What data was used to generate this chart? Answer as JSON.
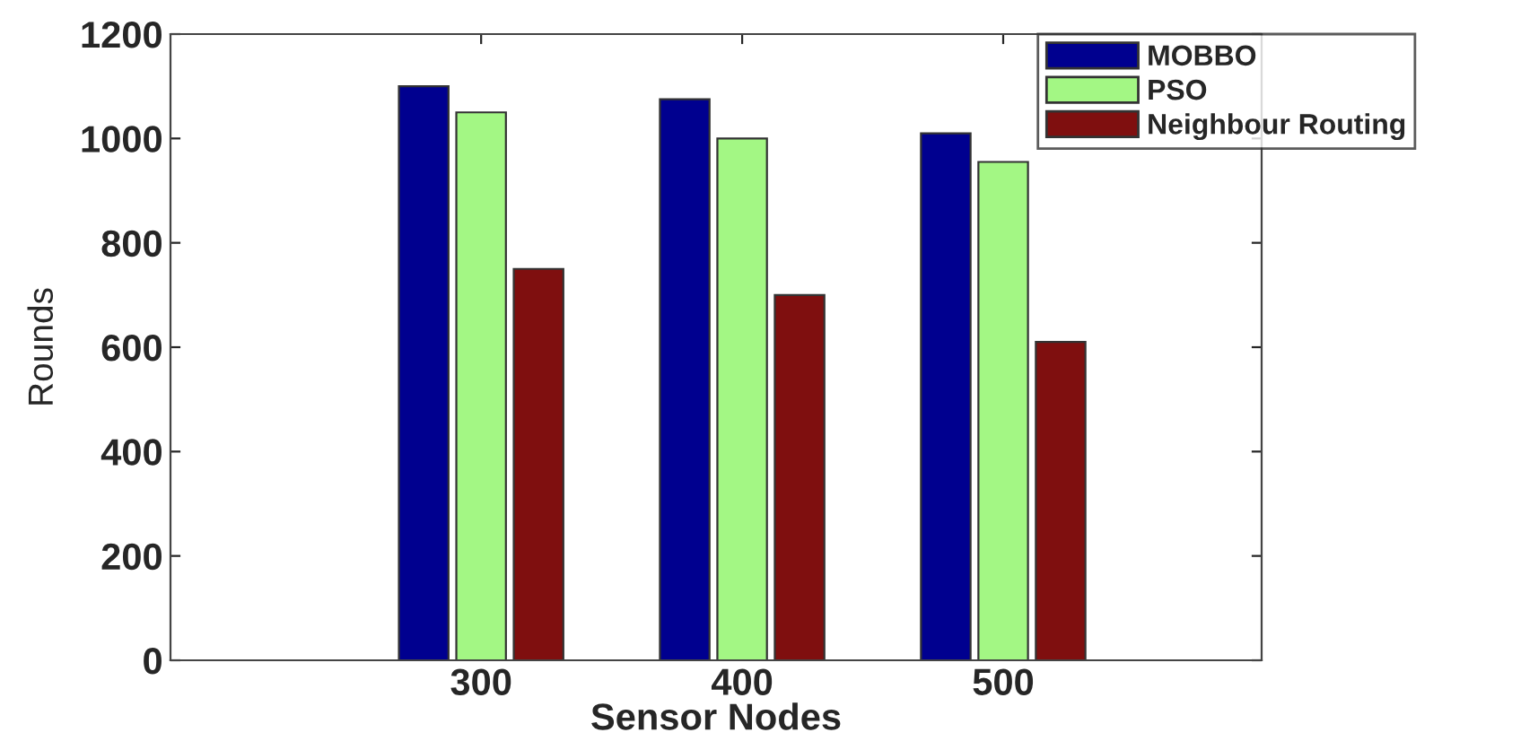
{
  "chart_data": {
    "type": "bar",
    "xlabel": "Sensor Nodes",
    "ylabel": "Rounds",
    "categories": [
      "300",
      "400",
      "500"
    ],
    "series": [
      {
        "name": "MOBBO",
        "color": "#00008f",
        "values": [
          1100,
          1075,
          1010
        ]
      },
      {
        "name": "PSO",
        "color": "#a3f784",
        "values": [
          1050,
          1000,
          955
        ]
      },
      {
        "name": "Neighbour Routing",
        "color": "#7f0f0f",
        "values": [
          750,
          700,
          610
        ]
      }
    ],
    "ylim": [
      0,
      1200
    ],
    "yticks": [
      0,
      200,
      400,
      600,
      800,
      1000,
      1200
    ],
    "grid": false,
    "legend": "top right"
  }
}
